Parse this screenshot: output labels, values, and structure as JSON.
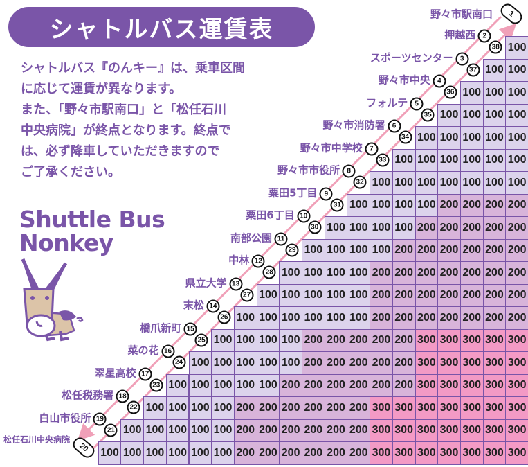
{
  "title": "シャトルバス運賃表",
  "intro_lines": [
    "シャトルバス『のんキー』は、乗車区間",
    "に応じて運賃が異なります。",
    "また、「野々市駅南口」と「松任石川",
    "中央病院」が終点となります。終点で",
    "は、必ず降車していただきますので",
    "ご了承ください。"
  ],
  "logo": {
    "line1": "Shuttle Bus",
    "line2": "Nonkey"
  },
  "colors": {
    "accent": "#7a55a8",
    "fare_100": "#dcd3ec",
    "fare_200": "#d8b4da",
    "fare_300": "#f39ac5",
    "route_line": "#f0a0b8"
  },
  "terminals": {
    "start": {
      "number": "1",
      "name": "野々市駅南口"
    },
    "end": {
      "number": "20",
      "name": "松任石川中央病院"
    }
  },
  "stops": [
    {
      "name": "押越西",
      "out": "2",
      "in": "38"
    },
    {
      "name": "スポーツセンター",
      "out": "3",
      "in": "37"
    },
    {
      "name": "野々市中央",
      "out": "4",
      "in": "36"
    },
    {
      "name": "フォルテ",
      "out": "5",
      "in": "35"
    },
    {
      "name": "野々市消防署",
      "out": "6",
      "in": "34"
    },
    {
      "name": "野々市中学校",
      "out": "7",
      "in": "33"
    },
    {
      "name": "野々市市役所",
      "out": "8",
      "in": "32"
    },
    {
      "name": "粟田5丁目",
      "out": "9",
      "in": "31"
    },
    {
      "name": "粟田6丁目",
      "out": "10",
      "in": "30"
    },
    {
      "name": "南部公園",
      "out": "11",
      "in": "29"
    },
    {
      "name": "中林",
      "out": "12",
      "in": "28"
    },
    {
      "name": "県立大学",
      "out": "13",
      "in": "27"
    },
    {
      "name": "末松",
      "out": "14",
      "in": "26"
    },
    {
      "name": "橋爪新町",
      "out": "15",
      "in": "25"
    },
    {
      "name": "菜の花",
      "out": "16",
      "in": "24"
    },
    {
      "name": "翠星高校",
      "out": "17",
      "in": "23"
    },
    {
      "name": "松任税務署",
      "out": "18",
      "in": "22"
    },
    {
      "name": "白山市役所",
      "out": "19",
      "in": "21"
    }
  ],
  "fares": [
    [
      "100"
    ],
    [
      "100",
      "100"
    ],
    [
      "100",
      "100",
      "100"
    ],
    [
      "100",
      "100",
      "100",
      "100"
    ],
    [
      "100",
      "100",
      "100",
      "100",
      "100"
    ],
    [
      "100",
      "100",
      "100",
      "100",
      "100",
      "100"
    ],
    [
      "100",
      "100",
      "100",
      "100",
      "100",
      "100",
      "100"
    ],
    [
      "100",
      "100",
      "100",
      "100",
      "200",
      "200",
      "200",
      "200"
    ],
    [
      "100",
      "100",
      "100",
      "100",
      "200",
      "200",
      "200",
      "200",
      "200"
    ],
    [
      "100",
      "100",
      "100",
      "100",
      "200",
      "200",
      "200",
      "200",
      "200",
      "200"
    ],
    [
      "100",
      "100",
      "100",
      "100",
      "200",
      "200",
      "200",
      "200",
      "200",
      "200",
      "200"
    ],
    [
      "100",
      "100",
      "100",
      "100",
      "100",
      "200",
      "200",
      "200",
      "200",
      "200",
      "200",
      "200"
    ],
    [
      "100",
      "100",
      "100",
      "100",
      "100",
      "100",
      "200",
      "200",
      "200",
      "200",
      "200",
      "200",
      "200"
    ],
    [
      "100",
      "100",
      "100",
      "100",
      "200",
      "200",
      "200",
      "200",
      "200",
      "300",
      "300",
      "300",
      "300",
      "300"
    ],
    [
      "100",
      "100",
      "100",
      "100",
      "100",
      "200",
      "200",
      "200",
      "200",
      "200",
      "300",
      "300",
      "300",
      "300",
      "300"
    ],
    [
      "100",
      "100",
      "100",
      "100",
      "100",
      "200",
      "200",
      "200",
      "200",
      "200",
      "200",
      "300",
      "300",
      "300",
      "300",
      "300"
    ],
    [
      "100",
      "100",
      "100",
      "100",
      "200",
      "200",
      "200",
      "200",
      "200",
      "200",
      "300",
      "300",
      "300",
      "300",
      "300",
      "300",
      "300"
    ],
    [
      "100",
      "100",
      "100",
      "100",
      "100",
      "200",
      "200",
      "200",
      "200",
      "200",
      "200",
      "300",
      "300",
      "300",
      "300",
      "300",
      "300",
      "300"
    ],
    [
      "100",
      "100",
      "100",
      "100",
      "100",
      "100",
      "200",
      "200",
      "200",
      "200",
      "200",
      "200",
      "300",
      "300",
      "300",
      "300",
      "300",
      "300",
      "300"
    ]
  ]
}
